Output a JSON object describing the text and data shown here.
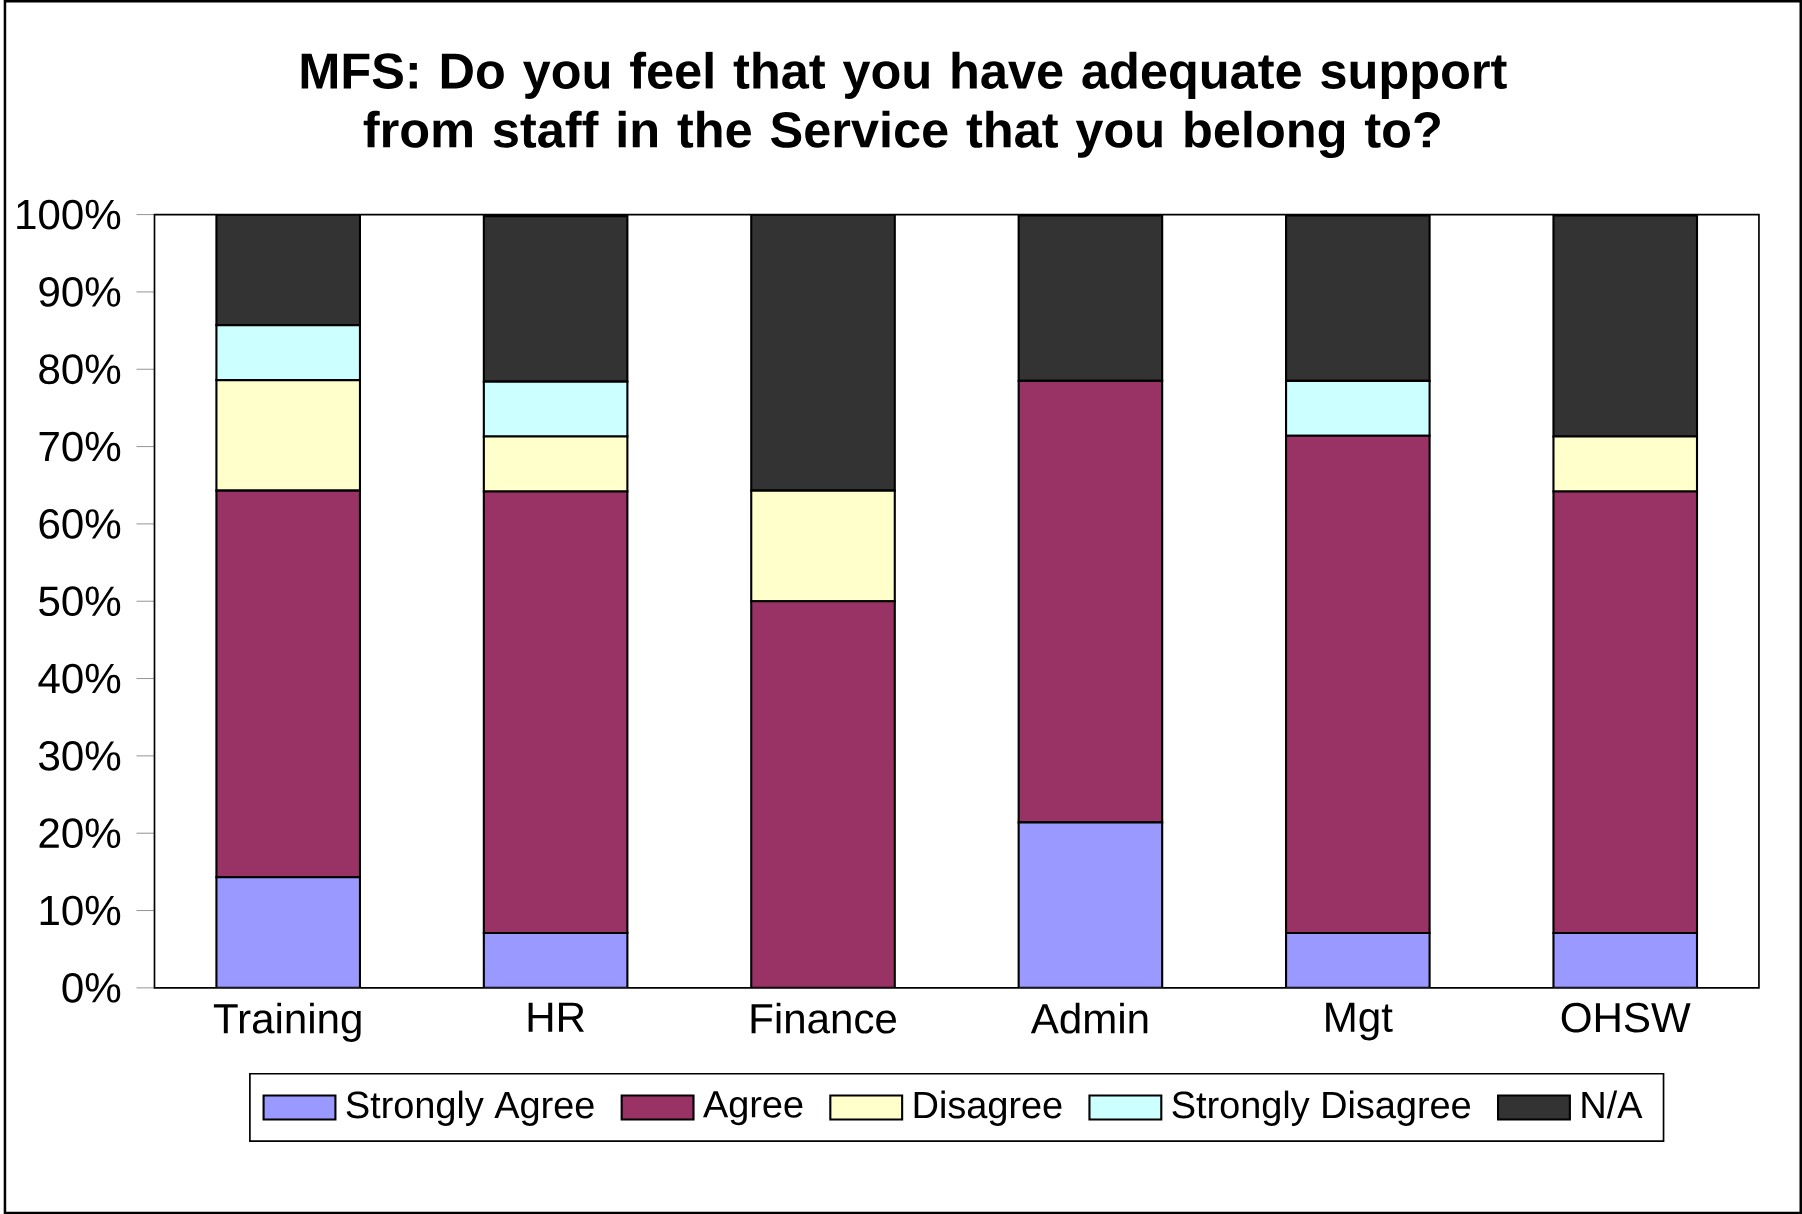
{
  "chart_data": {
    "type": "bar",
    "stacked": true,
    "title": "MFS: Do you feel that you have adequate support from staff in the Service that you belong to?",
    "categories": [
      "Training",
      "HR",
      "Finance",
      "Admin",
      "Mgt",
      "OHSW"
    ],
    "series": [
      {
        "name": "Strongly Agree",
        "color": "#9999ff",
        "values": [
          14.3,
          7.1,
          0,
          21.4,
          7.1,
          7.1
        ]
      },
      {
        "name": "Agree",
        "color": "#993366",
        "values": [
          50,
          57.1,
          50,
          57.1,
          64.3,
          57.1
        ]
      },
      {
        "name": "Disagree",
        "color": "#ffffcc",
        "values": [
          14.3,
          7.1,
          14.3,
          0,
          0,
          7.1
        ]
      },
      {
        "name": "Strongly Disagree",
        "color": "#ccffff",
        "values": [
          7.1,
          7.1,
          0,
          0,
          7.1,
          0
        ]
      },
      {
        "name": "N/A",
        "color": "#333333",
        "values": [
          14.3,
          21.4,
          35.7,
          21.4,
          21.4,
          28.6
        ]
      }
    ],
    "ylim": [
      0,
      100
    ],
    "yticks": [
      {
        "value": 0,
        "label": "0%"
      },
      {
        "value": 10,
        "label": "10%"
      },
      {
        "value": 20,
        "label": "20%"
      },
      {
        "value": 30,
        "label": "30%"
      },
      {
        "value": 40,
        "label": "40%"
      },
      {
        "value": 50,
        "label": "50%"
      },
      {
        "value": 60,
        "label": "60%"
      },
      {
        "value": 70,
        "label": "70%"
      },
      {
        "value": 80,
        "label": "80%"
      },
      {
        "value": 90,
        "label": "90%"
      },
      {
        "value": 100,
        "label": "100%"
      }
    ],
    "legend": "bottom"
  }
}
